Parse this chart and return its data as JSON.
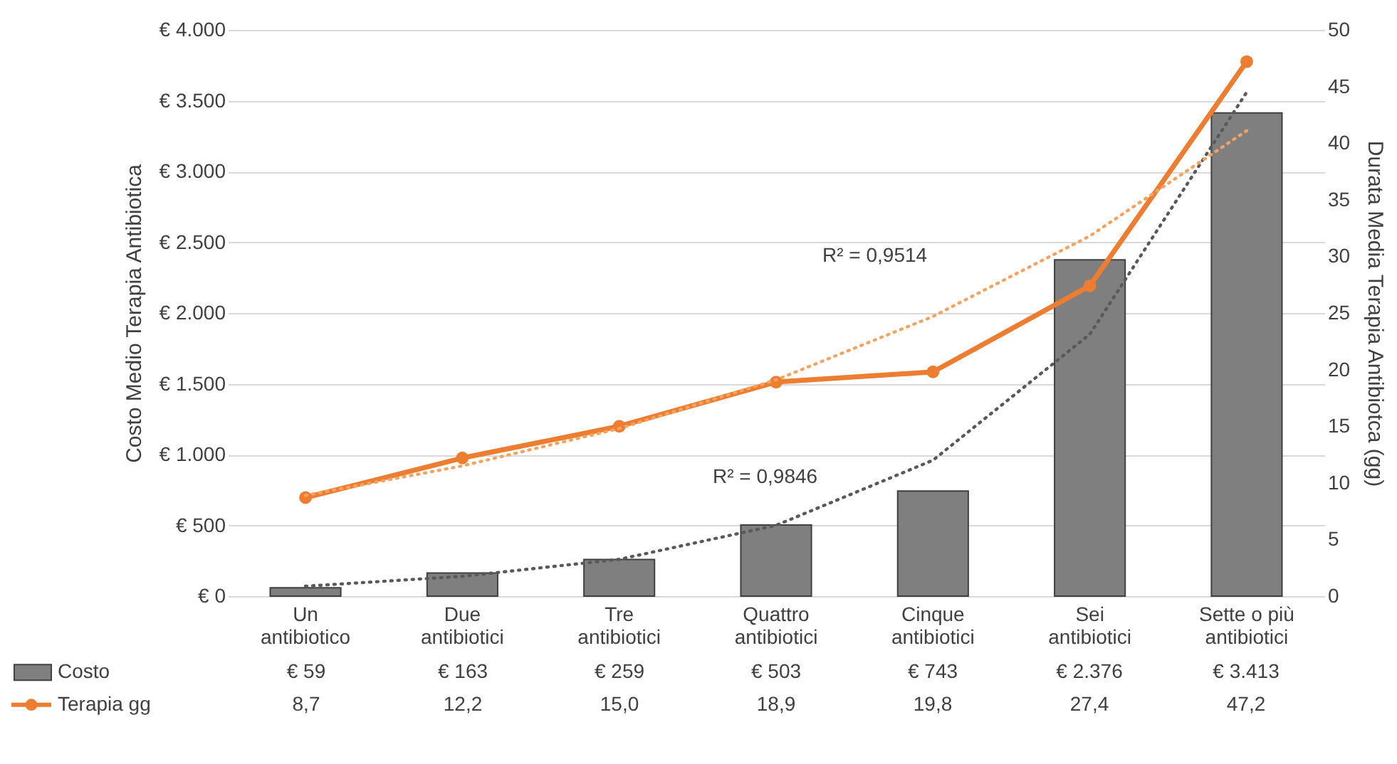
{
  "chart_data": {
    "type": "bar",
    "categories": [
      "Un antibiotico",
      "Due antibiotici",
      "Tre antibiotici",
      "Quattro antibiotici",
      "Cinque antibiotici",
      "Sei antibiotici",
      "Sette o più antibiotici"
    ],
    "ylabel": "Costo Medio Terapia Antibiotica",
    "y2label": "Durata Media Terapia Antibiotca (gg)",
    "ylim": [
      0,
      4000
    ],
    "yticks": [
      {
        "value": 0,
        "label": "€ 0"
      },
      {
        "value": 500,
        "label": "€ 500"
      },
      {
        "value": 1000,
        "label": "€ 1.000"
      },
      {
        "value": 1500,
        "label": "€ 1.500"
      },
      {
        "value": 2000,
        "label": "€ 2.000"
      },
      {
        "value": 2500,
        "label": "€ 2.500"
      },
      {
        "value": 3000,
        "label": "€ 3.000"
      },
      {
        "value": 3500,
        "label": "€ 3.500"
      },
      {
        "value": 4000,
        "label": "€ 4.000"
      }
    ],
    "y2lim": [
      0,
      50
    ],
    "y2ticks": [
      0,
      5,
      10,
      15,
      20,
      25,
      30,
      35,
      40,
      45,
      50
    ],
    "grid": "y",
    "legend": "bottom",
    "series": [
      {
        "name": "Costo",
        "color": "#7f7f7f",
        "values": [
          59,
          163,
          259,
          503,
          743,
          2376,
          3413
        ],
        "value_labels": [
          "€ 59",
          "€ 163",
          "€ 259",
          "€ 503",
          "€ 743",
          "€ 2.376",
          "€ 3.413"
        ]
      },
      {
        "name": "Terapia gg",
        "type": "line",
        "axis": "y2",
        "color": "#ed7d31",
        "marker": "circle",
        "values": [
          8.7,
          12.2,
          15.0,
          18.9,
          19.8,
          27.4,
          47.2
        ],
        "value_labels": [
          "8,7",
          "12,2",
          "15,0",
          "18,9",
          "19,8",
          "27,4",
          "47,2"
        ]
      },
      {
        "type": "line",
        "color": "#595959",
        "line_style": "dotted",
        "values": [
          70,
          140,
          260,
          500,
          960,
          1850,
          3560
        ]
      },
      {
        "type": "line",
        "axis": "y2",
        "color": "#f4a460",
        "line_style": "dotted",
        "values": [
          8.9,
          11.5,
          14.8,
          19.1,
          24.7,
          31.8,
          41.1
        ]
      }
    ],
    "annotations": [
      "R² = 0,9514",
      "R² = 0,9846"
    ]
  }
}
